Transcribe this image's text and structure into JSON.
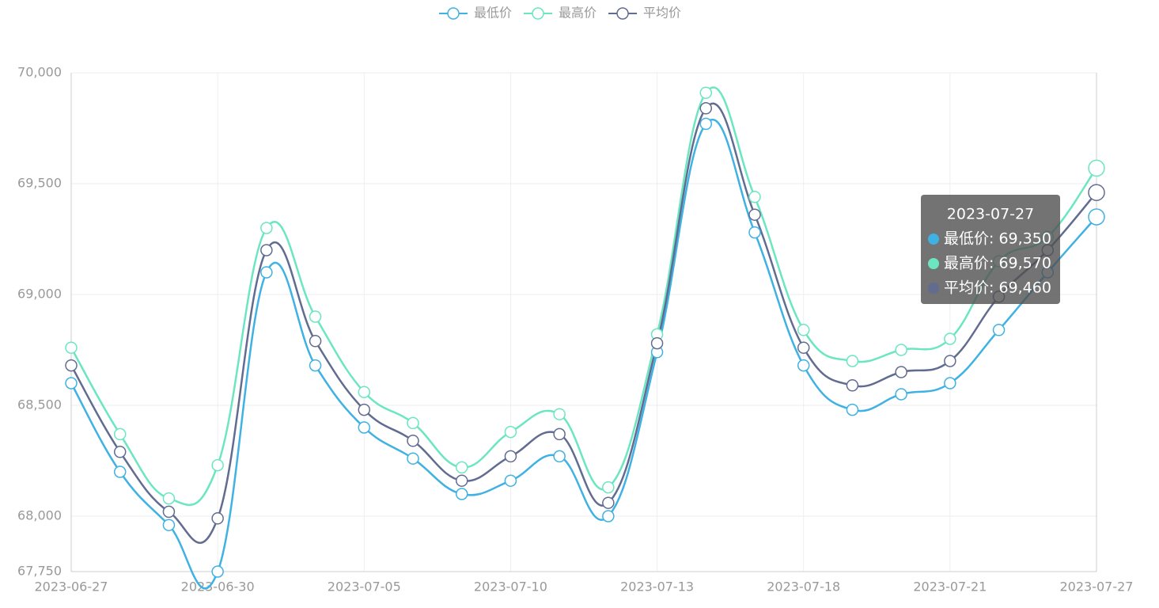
{
  "chart_data": {
    "type": "line",
    "categories": [
      "2023-06-27",
      null,
      null,
      "2023-06-30",
      null,
      null,
      "2023-07-05",
      null,
      null,
      "2023-07-10",
      null,
      null,
      "2023-07-13",
      null,
      null,
      "2023-07-18",
      null,
      null,
      "2023-07-21",
      null,
      null,
      "2023-07-27"
    ],
    "series": [
      {
        "name": "最低价",
        "color": "#3fb1e3",
        "values": [
          68600,
          68200,
          67960,
          67750,
          69100,
          68680,
          68400,
          68260,
          68100,
          68160,
          68270,
          68000,
          68740,
          69770,
          69280,
          68680,
          68480,
          68550,
          68600,
          68840,
          69100,
          69350
        ]
      },
      {
        "name": "最高价",
        "color": "#6be6c1",
        "values": [
          68760,
          68370,
          68080,
          68230,
          69300,
          68900,
          68560,
          68420,
          68220,
          68380,
          68460,
          68130,
          68820,
          69910,
          69440,
          68840,
          68700,
          68750,
          68800,
          69150,
          69260,
          69570
        ]
      },
      {
        "name": "平均价",
        "color": "#626c91",
        "values": [
          68680,
          68290,
          68020,
          67990,
          69200,
          68790,
          68480,
          68340,
          68160,
          68270,
          68370,
          68060,
          68780,
          69840,
          69360,
          68760,
          68590,
          68650,
          68700,
          68990,
          69200,
          69460
        ]
      }
    ],
    "ylim": [
      67750,
      70000
    ],
    "yticks": [
      {
        "value": 67750,
        "label": "67,750"
      },
      {
        "value": 68000,
        "label": "68,000"
      },
      {
        "value": 68500,
        "label": "68,500"
      },
      {
        "value": 69000,
        "label": "69,000"
      },
      {
        "value": 69500,
        "label": "69,500"
      },
      {
        "value": 70000,
        "label": "70,000"
      }
    ],
    "grid": true,
    "smooth": true,
    "legend": "top",
    "tooltip": {
      "index": 21,
      "lines": [
        "最低价: 69,350",
        "最高价: 69,570",
        "平均价: 69,460"
      ]
    }
  }
}
